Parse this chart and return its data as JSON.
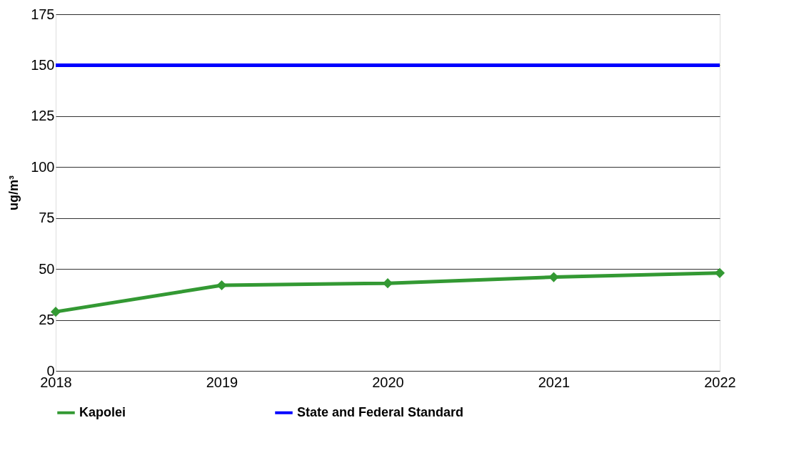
{
  "chart_data": {
    "type": "line",
    "ylabel": "ug/m³",
    "x": [
      2018,
      2019,
      2020,
      2021,
      2022
    ],
    "xlim": [
      2018,
      2022
    ],
    "xticks": [
      2018,
      2019,
      2020,
      2021,
      2022
    ],
    "ylim": [
      0,
      175
    ],
    "yticks": [
      0,
      25,
      50,
      75,
      100,
      125,
      150,
      175
    ],
    "grid": "y",
    "legend": "bottom",
    "series": [
      {
        "name": "Kapolei",
        "color": "#339933",
        "marker": "diamond",
        "values": [
          29,
          42,
          43,
          46,
          48
        ]
      },
      {
        "name": "State and Federal Standard",
        "color": "#0000ff",
        "marker": "none",
        "values": [
          150,
          150,
          150,
          150,
          150
        ]
      }
    ]
  }
}
